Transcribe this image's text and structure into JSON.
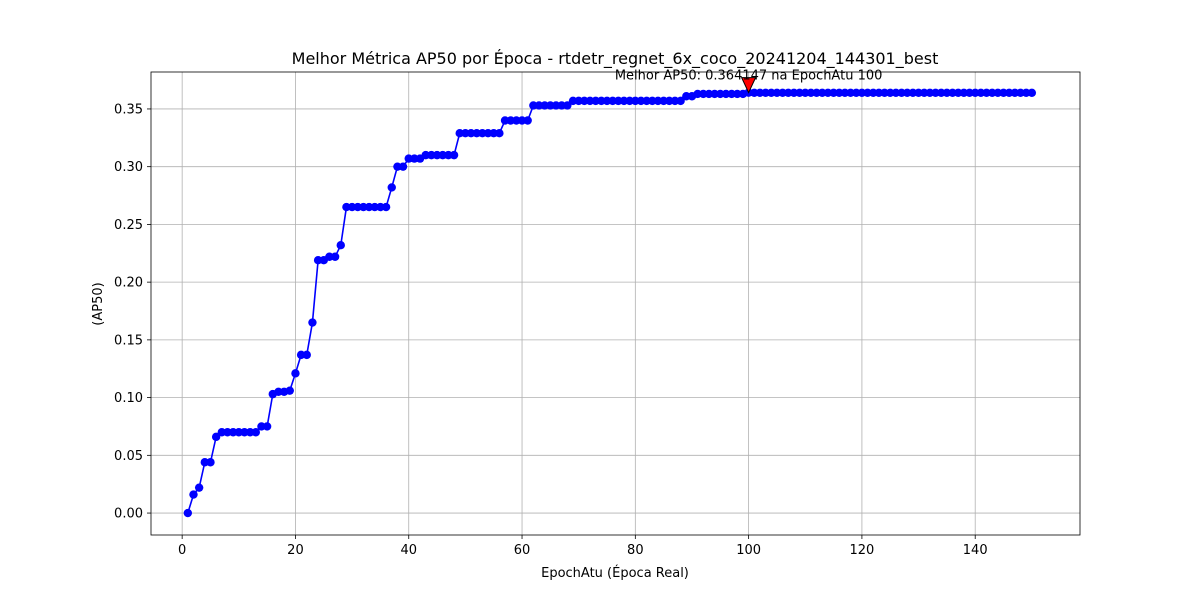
{
  "chart_data": {
    "type": "line",
    "title": "Melhor Métrica AP50 por Época - rtdetr_regnet_6x_coco_20241204_144301_best",
    "xlabel": "EpochAtu (Época Real)",
    "ylabel": "(AP50)",
    "xlim": [
      -5.5,
      158.5
    ],
    "ylim": [
      -0.019,
      0.382
    ],
    "xticks": [
      0,
      20,
      40,
      60,
      80,
      100,
      120,
      140
    ],
    "yticks": [
      0.0,
      0.05,
      0.1,
      0.15,
      0.2,
      0.25,
      0.3,
      0.35
    ],
    "ytick_labels": [
      "0.00",
      "0.05",
      "0.10",
      "0.15",
      "0.20",
      "0.25",
      "0.30",
      "0.35"
    ],
    "grid": true,
    "series": [
      {
        "color": "#0000ff",
        "marker": "circle",
        "points": [
          [
            1,
            0.0
          ],
          [
            2,
            0.016
          ],
          [
            3,
            0.022
          ],
          [
            4,
            0.044
          ],
          [
            5,
            0.044
          ],
          [
            6,
            0.066
          ],
          [
            7,
            0.07
          ],
          [
            8,
            0.07
          ],
          [
            9,
            0.07
          ],
          [
            10,
            0.07
          ],
          [
            11,
            0.07
          ],
          [
            12,
            0.07
          ],
          [
            13,
            0.07
          ],
          [
            14,
            0.075
          ],
          [
            15,
            0.075
          ],
          [
            16,
            0.103
          ],
          [
            17,
            0.105
          ],
          [
            18,
            0.105
          ],
          [
            19,
            0.106
          ],
          [
            20,
            0.121
          ],
          [
            21,
            0.137
          ],
          [
            22,
            0.137
          ],
          [
            23,
            0.165
          ],
          [
            24,
            0.219
          ],
          [
            25,
            0.219
          ],
          [
            26,
            0.222
          ],
          [
            27,
            0.222
          ],
          [
            28,
            0.232
          ],
          [
            29,
            0.265
          ],
          [
            30,
            0.265
          ],
          [
            31,
            0.265
          ],
          [
            32,
            0.265
          ],
          [
            33,
            0.265
          ],
          [
            34,
            0.265
          ],
          [
            35,
            0.265
          ],
          [
            36,
            0.265
          ],
          [
            37,
            0.282
          ],
          [
            38,
            0.3
          ],
          [
            39,
            0.3
          ],
          [
            40,
            0.307
          ],
          [
            41,
            0.307
          ],
          [
            42,
            0.307
          ],
          [
            43,
            0.31
          ],
          [
            44,
            0.31
          ],
          [
            45,
            0.31
          ],
          [
            46,
            0.31
          ],
          [
            47,
            0.31
          ],
          [
            48,
            0.31
          ],
          [
            49,
            0.329
          ],
          [
            50,
            0.329
          ],
          [
            51,
            0.329
          ],
          [
            52,
            0.329
          ],
          [
            53,
            0.329
          ],
          [
            54,
            0.329
          ],
          [
            55,
            0.329
          ],
          [
            56,
            0.329
          ],
          [
            57,
            0.34
          ],
          [
            58,
            0.34
          ],
          [
            59,
            0.34
          ],
          [
            60,
            0.34
          ],
          [
            61,
            0.34
          ],
          [
            62,
            0.353
          ],
          [
            63,
            0.353
          ],
          [
            64,
            0.353
          ],
          [
            65,
            0.353
          ],
          [
            66,
            0.353
          ],
          [
            67,
            0.353
          ],
          [
            68,
            0.353
          ],
          [
            69,
            0.357
          ],
          [
            70,
            0.357
          ],
          [
            71,
            0.357
          ],
          [
            72,
            0.357
          ],
          [
            73,
            0.357
          ],
          [
            74,
            0.357
          ],
          [
            75,
            0.357
          ],
          [
            76,
            0.357
          ],
          [
            77,
            0.357
          ],
          [
            78,
            0.357
          ],
          [
            79,
            0.357
          ],
          [
            80,
            0.357
          ],
          [
            81,
            0.357
          ],
          [
            82,
            0.357
          ],
          [
            83,
            0.357
          ],
          [
            84,
            0.357
          ],
          [
            85,
            0.357
          ],
          [
            86,
            0.357
          ],
          [
            87,
            0.357
          ],
          [
            88,
            0.357
          ],
          [
            89,
            0.361
          ],
          [
            90,
            0.361
          ],
          [
            91,
            0.363
          ],
          [
            92,
            0.363
          ],
          [
            93,
            0.363
          ],
          [
            94,
            0.363
          ],
          [
            95,
            0.363
          ],
          [
            96,
            0.363
          ],
          [
            97,
            0.363
          ],
          [
            98,
            0.363
          ],
          [
            99,
            0.363
          ],
          [
            100,
            0.364147
          ],
          [
            101,
            0.364
          ],
          [
            102,
            0.364
          ],
          [
            103,
            0.364
          ],
          [
            104,
            0.364
          ],
          [
            105,
            0.364
          ],
          [
            106,
            0.364
          ],
          [
            107,
            0.364
          ],
          [
            108,
            0.364
          ],
          [
            109,
            0.364
          ],
          [
            110,
            0.364
          ],
          [
            111,
            0.364
          ],
          [
            112,
            0.364
          ],
          [
            113,
            0.364
          ],
          [
            114,
            0.364
          ],
          [
            115,
            0.364
          ],
          [
            116,
            0.364
          ],
          [
            117,
            0.364
          ],
          [
            118,
            0.364
          ],
          [
            119,
            0.364
          ],
          [
            120,
            0.364
          ],
          [
            121,
            0.364
          ],
          [
            122,
            0.364
          ],
          [
            123,
            0.364
          ],
          [
            124,
            0.364
          ],
          [
            125,
            0.364
          ],
          [
            126,
            0.364
          ],
          [
            127,
            0.364
          ],
          [
            128,
            0.364
          ],
          [
            129,
            0.364
          ],
          [
            130,
            0.364
          ],
          [
            131,
            0.364
          ],
          [
            132,
            0.364
          ],
          [
            133,
            0.364
          ],
          [
            134,
            0.364
          ],
          [
            135,
            0.364
          ],
          [
            136,
            0.364
          ],
          [
            137,
            0.364
          ],
          [
            138,
            0.364
          ],
          [
            139,
            0.364
          ],
          [
            140,
            0.364
          ],
          [
            141,
            0.364
          ],
          [
            142,
            0.364
          ],
          [
            143,
            0.364
          ],
          [
            144,
            0.364
          ],
          [
            145,
            0.364
          ],
          [
            146,
            0.364
          ],
          [
            147,
            0.364
          ],
          [
            148,
            0.364
          ],
          [
            149,
            0.364
          ],
          [
            150,
            0.364
          ]
        ]
      }
    ],
    "annotation": {
      "text": "Melhor AP50: 0.364147 na EpochAtu 100",
      "x": 100,
      "y": 0.364147,
      "marker_color": "#ff0000"
    }
  }
}
